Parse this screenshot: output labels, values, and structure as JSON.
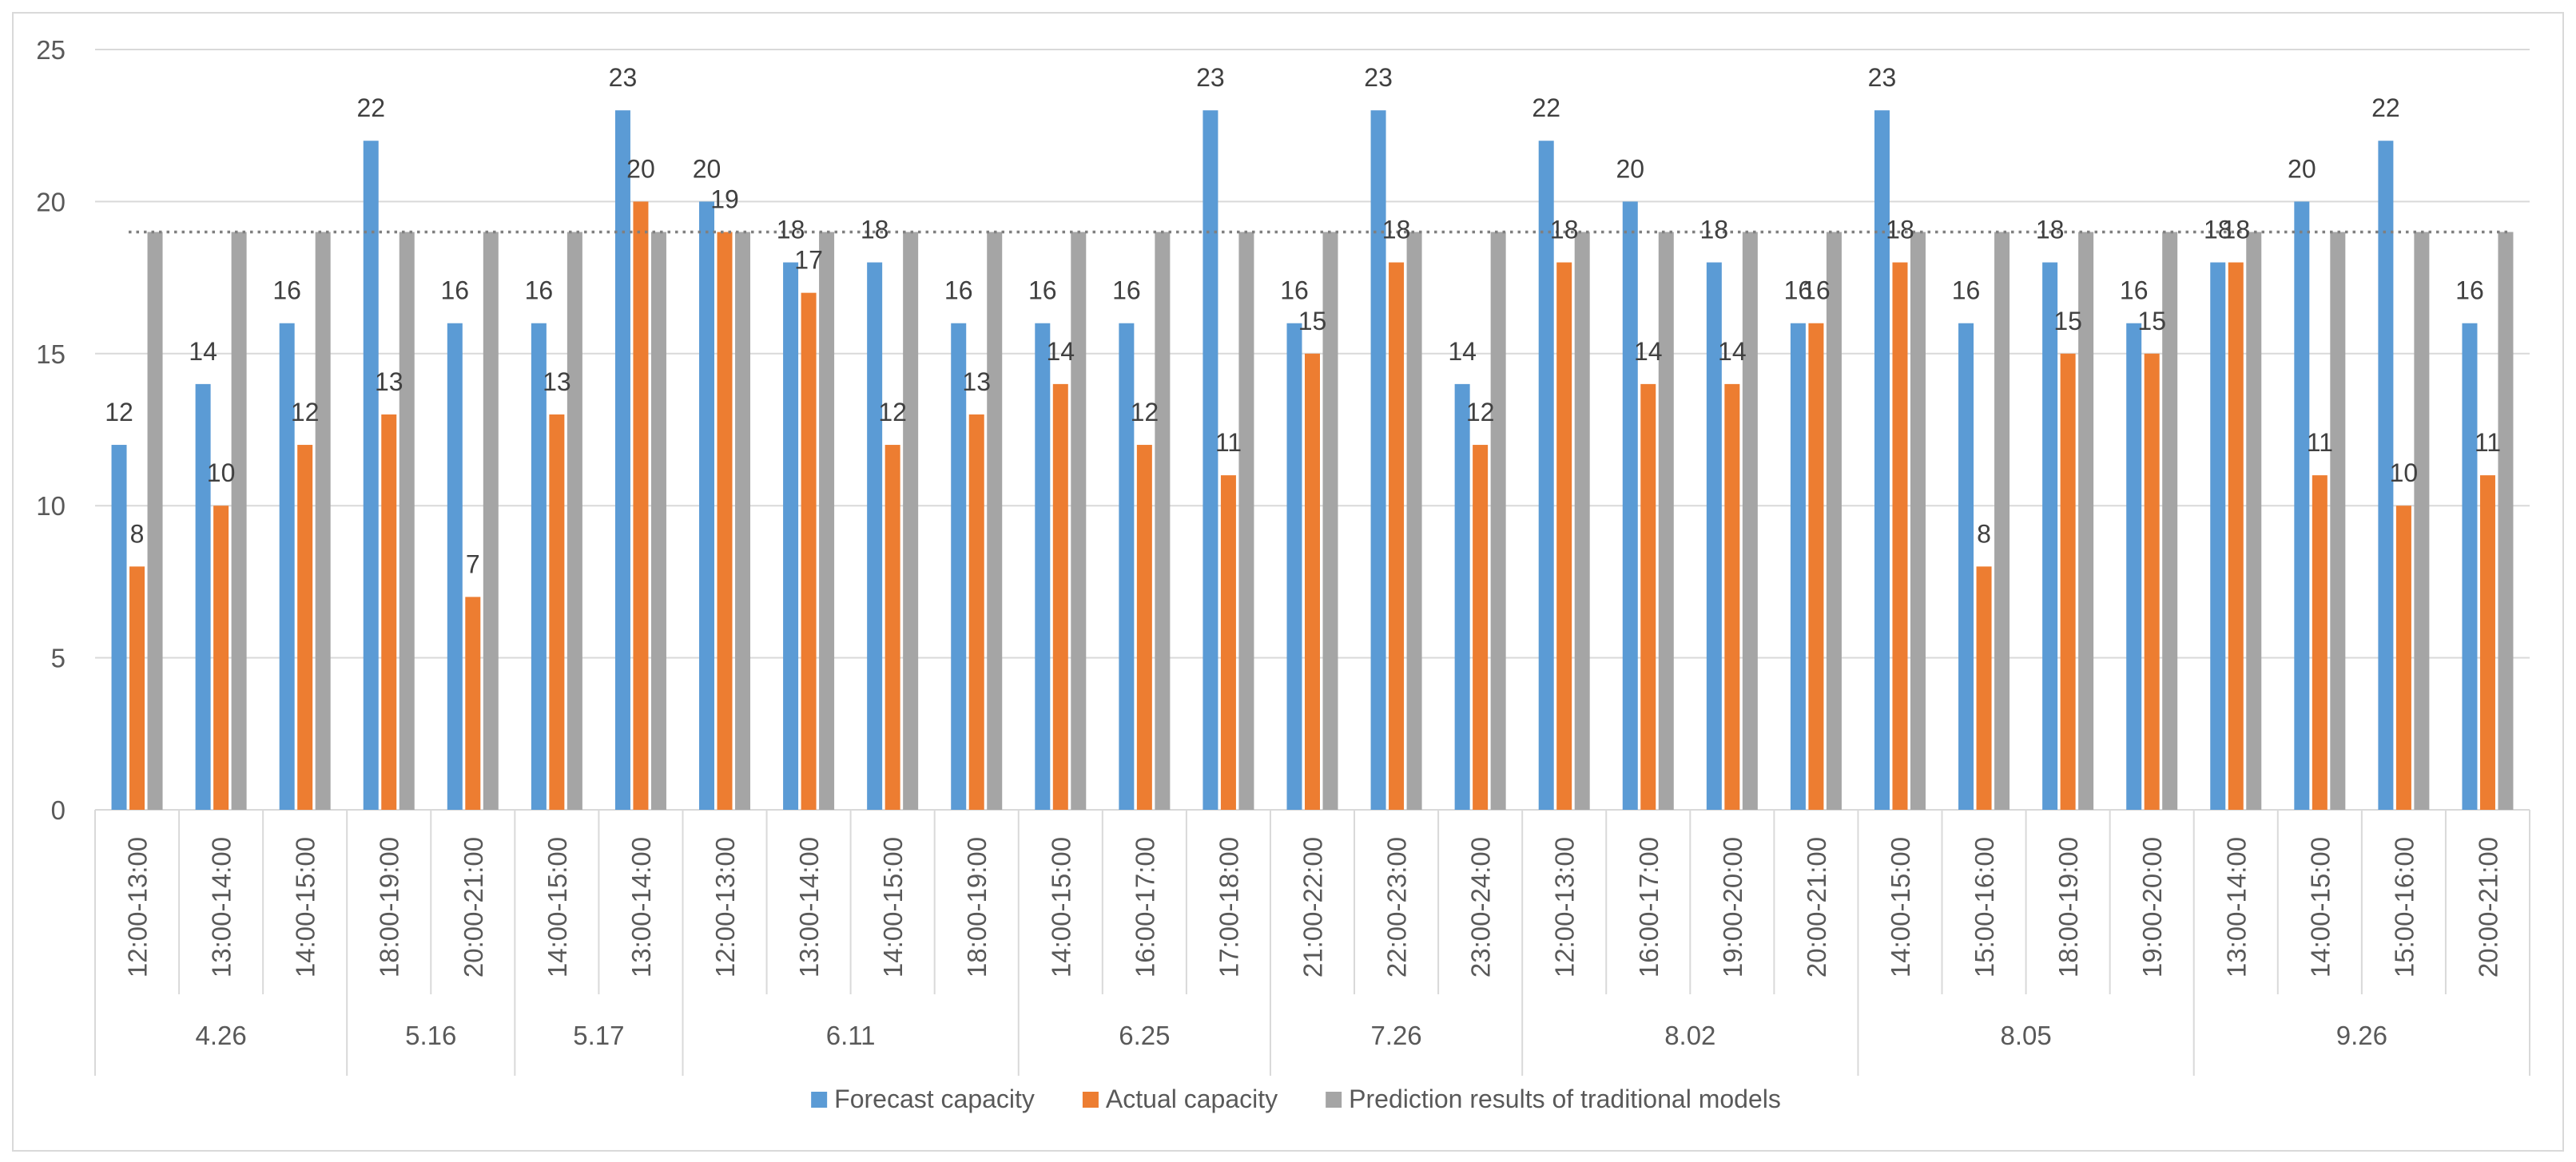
{
  "chart_data": {
    "type": "bar",
    "ylim": [
      0,
      25
    ],
    "yticks": [
      0,
      5,
      10,
      15,
      20,
      25
    ],
    "grid": true,
    "legend": "bottom",
    "groups": [
      {
        "label": "4.26",
        "size": 3
      },
      {
        "label": "5.16",
        "size": 2
      },
      {
        "label": "5.17",
        "size": 2
      },
      {
        "label": "6.11",
        "size": 4
      },
      {
        "label": "6.25",
        "size": 3
      },
      {
        "label": "7.26",
        "size": 3
      },
      {
        "label": "8.02",
        "size": 4
      },
      {
        "label": "8.05",
        "size": 4
      },
      {
        "label": "9.26",
        "size": 4
      }
    ],
    "categories": [
      "12:00-13:00",
      "13:00-14:00",
      "14:00-15:00",
      "18:00-19:00",
      "20:00-21:00",
      "14:00-15:00",
      "13:00-14:00",
      "12:00-13:00",
      "13:00-14:00",
      "14:00-15:00",
      "18:00-19:00",
      "14:00-15:00",
      "16:00-17:00",
      "17:00-18:00",
      "21:00-22:00",
      "22:00-23:00",
      "23:00-24:00",
      "12:00-13:00",
      "16:00-17:00",
      "19:00-20:00",
      "20:00-21:00",
      "14:00-15:00",
      "15:00-16:00",
      "18:00-19:00",
      "19:00-20:00",
      "13:00-14:00",
      "14:00-15:00",
      "15:00-16:00",
      "20:00-21:00"
    ],
    "series": [
      {
        "name": "Forecast capacity",
        "color": "#5B9BD5",
        "data_labels": true,
        "values": [
          12,
          14,
          16,
          22,
          16,
          16,
          23,
          20,
          18,
          18,
          16,
          16,
          16,
          23,
          16,
          23,
          14,
          22,
          20,
          18,
          16,
          23,
          16,
          18,
          16,
          18,
          20,
          22,
          16
        ]
      },
      {
        "name": "Actual capacity",
        "color": "#ED7D31",
        "data_labels": true,
        "values": [
          8,
          10,
          12,
          13,
          7,
          13,
          20,
          19,
          17,
          12,
          13,
          14,
          12,
          11,
          15,
          18,
          12,
          18,
          14,
          14,
          16,
          18,
          8,
          15,
          15,
          18,
          11,
          10,
          11
        ]
      },
      {
        "name": "Prediction results of traditional models",
        "color": "#A5A5A5",
        "data_labels": false,
        "values": [
          19,
          19,
          19,
          19,
          19,
          19,
          19,
          19,
          19,
          19,
          19,
          19,
          19,
          19,
          19,
          19,
          19,
          19,
          19,
          19,
          19,
          19,
          19,
          19,
          19,
          19,
          19,
          19,
          19
        ]
      }
    ],
    "reference_line": {
      "value": 19
    }
  }
}
